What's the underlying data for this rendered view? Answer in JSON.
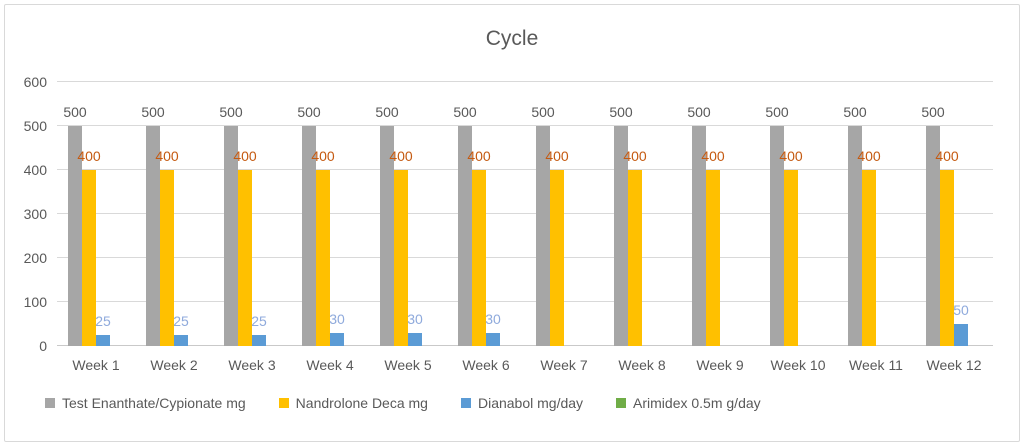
{
  "window": {
    "background": "#ffffff",
    "frame_border_color": "#d9d9d9"
  },
  "chart_data": {
    "type": "bar",
    "title": "Cycle",
    "xlabel": "",
    "ylabel": "",
    "categories": [
      "Week 1",
      "Week 2",
      "Week 3",
      "Week 4",
      "Week 5",
      "Week 6",
      "Week 7",
      "Week 8",
      "Week 9",
      "Week 10",
      "Week 11",
      "Week 12"
    ],
    "series": [
      {
        "name": "Test Enanthate/Cypionate mg",
        "color": "#a6a6a6",
        "label_color": "#595959",
        "show_labels": true,
        "values": [
          500,
          500,
          500,
          500,
          500,
          500,
          500,
          500,
          500,
          500,
          500,
          500
        ]
      },
      {
        "name": "Nandrolone Deca mg",
        "color": "#ffc000",
        "label_color": "#c55a11",
        "show_labels": true,
        "values": [
          400,
          400,
          400,
          400,
          400,
          400,
          400,
          400,
          400,
          400,
          400,
          400
        ]
      },
      {
        "name": "Dianabol mg/day",
        "color": "#5b9bd5",
        "label_color": "#8faadc",
        "show_labels": true,
        "values": [
          25,
          25,
          25,
          30,
          30,
          30,
          0,
          0,
          0,
          0,
          0,
          50
        ]
      },
      {
        "name": "Arimidex 0.5m g/day",
        "color": "#70ad47",
        "label_color": "#70ad47",
        "show_labels": false,
        "values": [
          0.5,
          0.5,
          0.5,
          0.5,
          0.5,
          0.5,
          0.5,
          0.5,
          0.5,
          0.5,
          0.5,
          0.5
        ]
      }
    ],
    "ylim": [
      0,
      600
    ],
    "yticks": [
      0,
      100,
      200,
      300,
      400,
      500,
      600
    ],
    "grid": true,
    "gridline_color": "#d9d9d9",
    "axis_line_color": "#c9c9c9",
    "text_color": "#595959",
    "legend_position": "bottom"
  }
}
